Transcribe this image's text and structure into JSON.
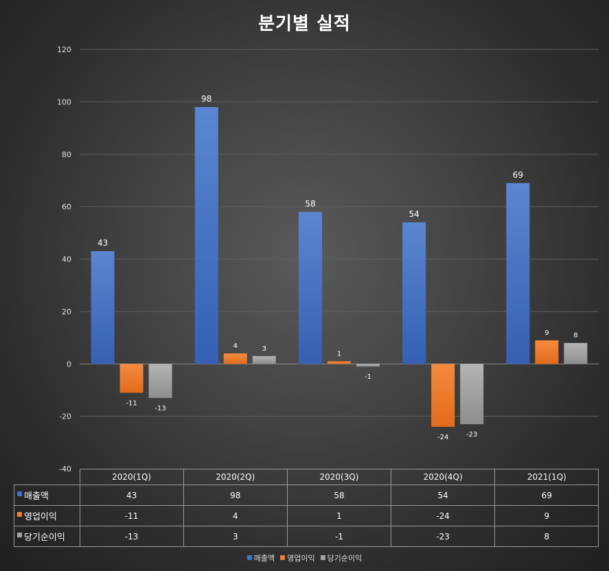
{
  "chart_data": {
    "type": "bar",
    "title": "분기별 실적",
    "categories": [
      "2020(1Q)",
      "2020(2Q)",
      "2020(3Q)",
      "2020(4Q)",
      "2021(1Q)"
    ],
    "series": [
      {
        "name": "매출액",
        "color": "#4472c4",
        "values": [
          43,
          98,
          58,
          54,
          69
        ]
      },
      {
        "name": "영업이익",
        "color": "#ed7d31",
        "values": [
          -11,
          4,
          1,
          -24,
          9
        ]
      },
      {
        "name": "당기순이익",
        "color": "#a5a5a5",
        "values": [
          -13,
          3,
          -1,
          -23,
          8
        ]
      }
    ],
    "ylim": [
      -40,
      120
    ],
    "yticks": [
      -40,
      -20,
      0,
      20,
      40,
      60,
      80,
      100,
      120
    ],
    "grid": true,
    "legend": "bottom",
    "data_table": true
  }
}
